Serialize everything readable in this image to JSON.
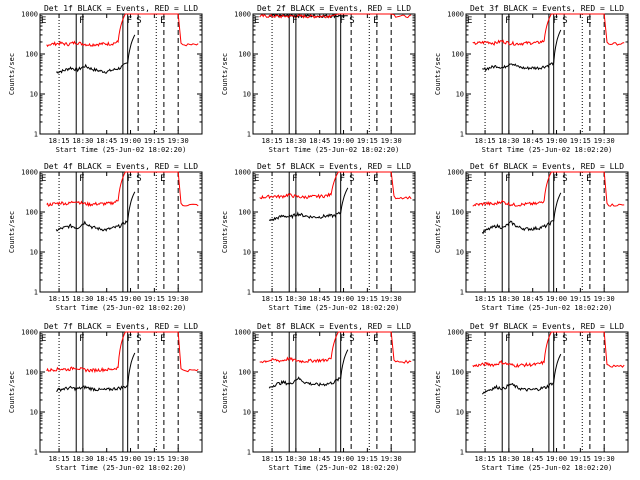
{
  "figure": {
    "start_time_label": "Start Time (25-Jun-02 18:02:20)",
    "y_label": "Counts/sec",
    "x_ticks": [
      "18:15",
      "18:30",
      "18:45",
      "19:00",
      "19:15",
      "19:30"
    ],
    "y_ticks": [
      "1",
      "10",
      "100",
      "1000"
    ],
    "markers": {
      "E": "E",
      "F": "F",
      "S": "S"
    }
  },
  "colors": {
    "events": "#000000",
    "lld": "#ff0000",
    "axes": "#000000"
  },
  "chart_data": [
    {
      "type": "line",
      "title": "Det 1f BLACK = Events, RED = LLD",
      "ylim": [
        1,
        1000
      ],
      "scale": "log",
      "series": [
        {
          "name": "Events",
          "color": "#000000",
          "start": 18.22,
          "values": [
            35,
            38,
            45,
            40,
            50,
            42,
            38,
            36,
            40,
            45,
            60,
            300
          ]
        },
        {
          "name": "LLD",
          "color": "#ff0000",
          "start": 18.12,
          "values": [
            170,
            180,
            185,
            175,
            195,
            180,
            170,
            175,
            180,
            180,
            200,
            1000
          ]
        }
      ]
    },
    {
      "type": "line",
      "title": "Det 2f BLACK = Events, RED = LLD",
      "ylim": [
        1,
        1000
      ],
      "scale": "log",
      "series": [
        {
          "name": "Events",
          "color": "#000000",
          "start": 18.22,
          "values": [
            880,
            900,
            900,
            900,
            900,
            900,
            900,
            900,
            900,
            900,
            900,
            900
          ]
        },
        {
          "name": "LLD",
          "color": "#ff0000",
          "start": 18.12,
          "values": [
            880,
            890,
            880,
            870,
            880,
            890,
            880,
            870,
            880,
            880,
            900,
            1000
          ]
        }
      ]
    },
    {
      "type": "line",
      "title": "Det 3f BLACK = Events, RED = LLD",
      "ylim": [
        1,
        1000
      ],
      "scale": "log",
      "series": [
        {
          "name": "Events",
          "color": "#000000",
          "start": 18.22,
          "values": [
            40,
            45,
            50,
            45,
            60,
            48,
            44,
            45,
            45,
            50,
            60,
            400
          ]
        },
        {
          "name": "LLD",
          "color": "#ff0000",
          "start": 18.12,
          "values": [
            180,
            190,
            200,
            185,
            210,
            190,
            180,
            185,
            190,
            190,
            210,
            1000
          ]
        }
      ]
    },
    {
      "type": "line",
      "title": "Det 4f BLACK = Events, RED = LLD",
      "ylim": [
        1,
        1000
      ],
      "scale": "log",
      "series": [
        {
          "name": "Events",
          "color": "#000000",
          "start": 18.22,
          "values": [
            35,
            40,
            45,
            40,
            55,
            42,
            38,
            36,
            40,
            45,
            60,
            320
          ]
        },
        {
          "name": "LLD",
          "color": "#ff0000",
          "start": 18.12,
          "values": [
            150,
            160,
            170,
            160,
            190,
            165,
            155,
            160,
            160,
            165,
            190,
            1000
          ]
        }
      ]
    },
    {
      "type": "line",
      "title": "Det 5f BLACK = Events, RED = LLD",
      "ylim": [
        1,
        1000
      ],
      "scale": "log",
      "series": [
        {
          "name": "Events",
          "color": "#000000",
          "start": 18.22,
          "values": [
            60,
            70,
            80,
            75,
            90,
            80,
            75,
            75,
            80,
            80,
            95,
            400
          ]
        },
        {
          "name": "LLD",
          "color": "#ff0000",
          "start": 18.12,
          "values": [
            230,
            240,
            250,
            240,
            270,
            245,
            235,
            240,
            245,
            250,
            270,
            1000
          ]
        }
      ]
    },
    {
      "type": "line",
      "title": "Det 6f BLACK = Events, RED = LLD",
      "ylim": [
        1,
        1000
      ],
      "scale": "log",
      "series": [
        {
          "name": "Events",
          "color": "#000000",
          "start": 18.22,
          "values": [
            30,
            38,
            45,
            40,
            55,
            42,
            38,
            38,
            40,
            45,
            60,
            300
          ]
        },
        {
          "name": "LLD",
          "color": "#ff0000",
          "start": 18.12,
          "values": [
            150,
            155,
            165,
            155,
            185,
            160,
            150,
            155,
            160,
            160,
            190,
            1000
          ]
        }
      ]
    },
    {
      "type": "line",
      "title": "Det 7f BLACK = Events, RED = LLD",
      "ylim": [
        1,
        1000
      ],
      "scale": "log",
      "series": [
        {
          "name": "Events",
          "color": "#000000",
          "start": 18.22,
          "values": [
            35,
            38,
            40,
            38,
            42,
            38,
            36,
            36,
            38,
            40,
            45,
            300
          ]
        },
        {
          "name": "LLD",
          "color": "#ff0000",
          "start": 18.12,
          "values": [
            110,
            115,
            120,
            115,
            130,
            115,
            110,
            112,
            115,
            115,
            130,
            1000
          ]
        }
      ]
    },
    {
      "type": "line",
      "title": "Det 8f BLACK = Events, RED = LLD",
      "ylim": [
        1,
        1000
      ],
      "scale": "log",
      "series": [
        {
          "name": "Events",
          "color": "#000000",
          "start": 18.22,
          "values": [
            40,
            50,
            55,
            50,
            70,
            55,
            50,
            48,
            50,
            55,
            70,
            360
          ]
        },
        {
          "name": "LLD",
          "color": "#ff0000",
          "start": 18.12,
          "values": [
            180,
            190,
            200,
            190,
            215,
            195,
            185,
            190,
            195,
            195,
            215,
            1000
          ]
        }
      ]
    },
    {
      "type": "line",
      "title": "Det 9f BLACK = Events, RED = LLD",
      "ylim": [
        1,
        1000
      ],
      "scale": "log",
      "series": [
        {
          "name": "Events",
          "color": "#000000",
          "start": 18.22,
          "values": [
            30,
            36,
            42,
            38,
            50,
            40,
            36,
            36,
            38,
            42,
            55,
            280
          ]
        },
        {
          "name": "LLD",
          "color": "#ff0000",
          "start": 18.12,
          "values": [
            140,
            150,
            160,
            150,
            175,
            155,
            145,
            150,
            152,
            155,
            175,
            1000
          ]
        }
      ]
    }
  ]
}
